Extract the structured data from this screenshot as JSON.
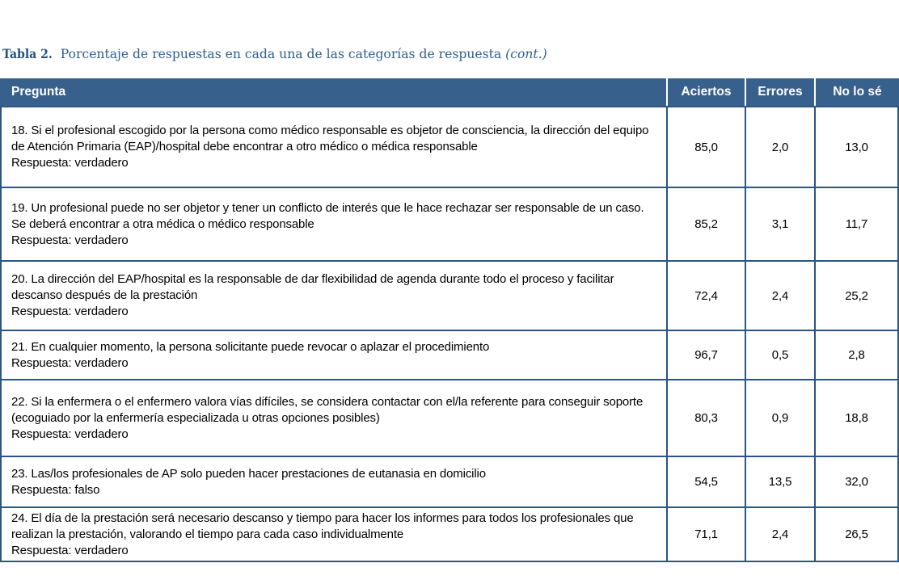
{
  "caption": {
    "label": "Tabla 2.",
    "text": " Porcentaje de respuestas en cada una de las categorías de respuesta ",
    "cont": "(cont.)"
  },
  "colors": {
    "header_background": "#38608c",
    "table_border": "#2a5585",
    "caption_text": "#2e5f8d",
    "header_text": "#ffffff",
    "body_text": "#000000"
  },
  "table": {
    "columns": [
      "Pregunta",
      "Aciertos",
      "Errores",
      "No lo sé"
    ],
    "rows": [
      {
        "question": [
          "18. Si el profesional escogido por la persona como médico responsable es objetor de consciencia, la dirección del equipo",
          "de Atención Primaria (EAP)/hospital debe encontrar a otro médico o médica responsable",
          "Respuesta: verdadero"
        ],
        "aciertos": "85,0",
        "errores": "2,0",
        "no_lo_se": "13,0"
      },
      {
        "question": [
          "19. Un profesional puede no ser objetor y tener un conflicto de interés que le hace rechazar ser responsable de un caso.",
          "Se deberá encontrar a otra médica o médico responsable",
          "Respuesta: verdadero"
        ],
        "aciertos": "85,2",
        "errores": "3,1",
        "no_lo_se": "11,7"
      },
      {
        "question": [
          "20. La dirección del EAP/hospital es la responsable de dar flexibilidad de agenda durante todo el proceso y facilitar",
          "descanso después de la prestación",
          "Respuesta: verdadero"
        ],
        "aciertos": "72,4",
        "errores": "2,4",
        "no_lo_se": "25,2"
      },
      {
        "question": [
          "21. En cualquier momento, la persona solicitante puede revocar o aplazar el procedimiento",
          "Respuesta: verdadero"
        ],
        "aciertos": "96,7",
        "errores": "0,5",
        "no_lo_se": "2,8"
      },
      {
        "question": [
          "22. Si la enfermera o el enfermero valora vías difíciles, se considera contactar con el/la referente para conseguir soporte",
          "(ecoguiado por la enfermería especializada u otras opciones posibles)",
          "Respuesta: verdadero"
        ],
        "aciertos": "80,3",
        "errores": "0,9",
        "no_lo_se": "18,8"
      },
      {
        "question": [
          "23. Las/los profesionales de AP solo pueden hacer prestaciones de eutanasia en domicilio",
          "Respuesta: falso"
        ],
        "aciertos": "54,5",
        "errores": "13,5",
        "no_lo_se": "32,0"
      },
      {
        "question": [
          "24. El día de la prestación será necesario descanso y tiempo para hacer los informes para todos los profesionales que",
          "realizan la prestación, valorando el tiempo para cada caso individualmente",
          "Respuesta: verdadero"
        ],
        "aciertos": "71,1",
        "errores": "2,4",
        "no_lo_se": "26,5"
      }
    ]
  }
}
